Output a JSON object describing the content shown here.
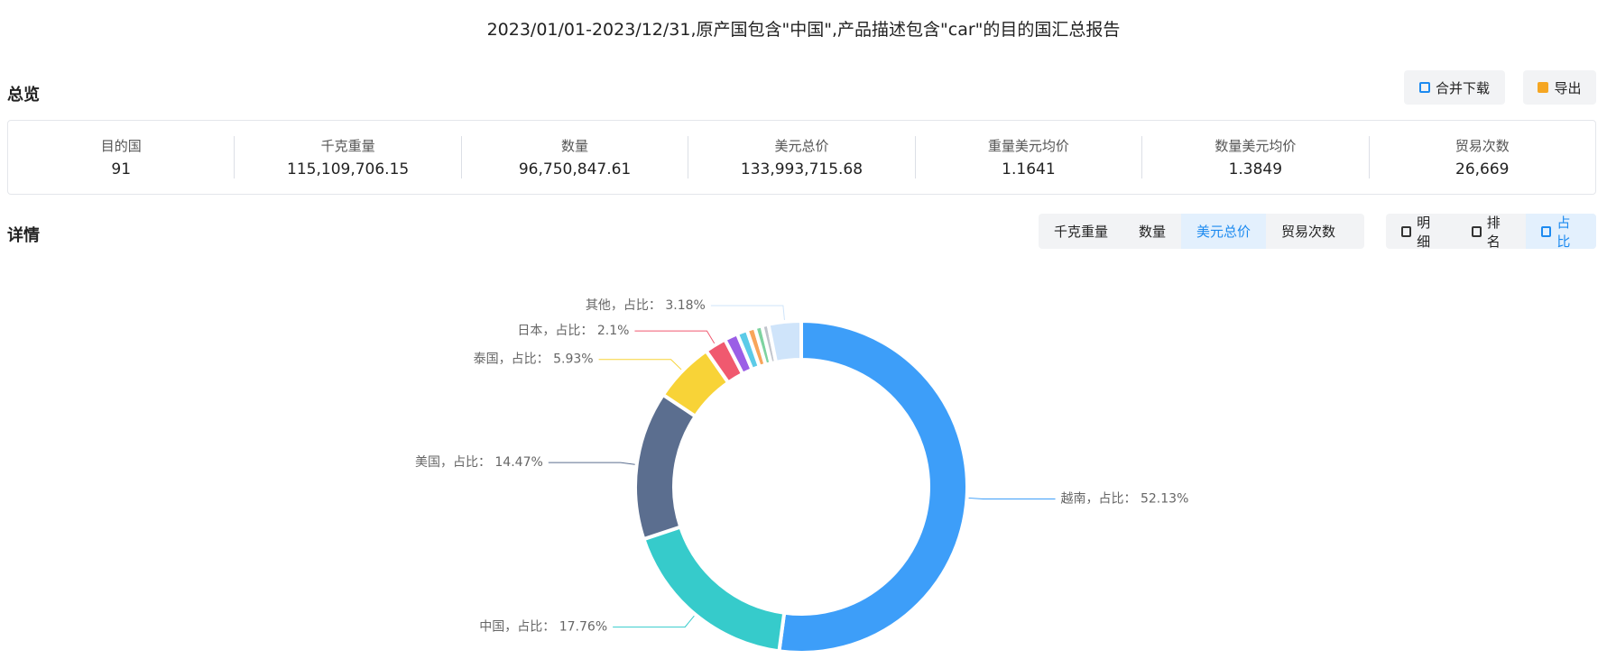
{
  "header": {
    "title": "2023/01/01-2023/12/31,原产国包含\"中国\",产品描述包含\"car\"的目的国汇总报告"
  },
  "overview": {
    "title": "总览",
    "buttons": [
      "合并下载",
      "导出"
    ],
    "stats": [
      {
        "label": "目的国",
        "value": "91"
      },
      {
        "label": "千克重量",
        "value": "115,109,706.15"
      },
      {
        "label": "数量",
        "value": "96,750,847.61"
      },
      {
        "label": "美元总价",
        "value": "133,993,715.68"
      },
      {
        "label": "重量美元均价",
        "value": "1.1641"
      },
      {
        "label": "数量美元均价",
        "value": "1.3849"
      },
      {
        "label": "贸易次数",
        "value": "26,669"
      }
    ]
  },
  "details": {
    "title": "详情",
    "metric_tabs": [
      "千克重量",
      "数量",
      "美元总价",
      "贸易次数"
    ],
    "metric_active": 2,
    "view_tabs": [
      "明细",
      "排名",
      "占比"
    ],
    "view_active": 2
  },
  "chart_data": {
    "type": "donut",
    "values": [
      52.13,
      17.76,
      14.47,
      5.93,
      2.1,
      1.3,
      1.0,
      0.8,
      0.7,
      0.63,
      3.18
    ],
    "value_labels": [
      "越南，占比： 52.13%",
      "中国，占比： 17.76%",
      "美国，占比： 14.47%",
      "泰国，占比： 5.93%",
      "日本，占比： 2.1%",
      null,
      null,
      null,
      null,
      null,
      "其他，占比： 3.18%"
    ],
    "colors": [
      "#3d9ef9",
      "#36cbcb",
      "#5b6e8f",
      "#f8d337",
      "#f0596f",
      "#9b5ee6",
      "#5ccbe8",
      "#f8a55a",
      "#7dd3a0",
      "#c0c4cc",
      "#cfe4fa"
    ]
  }
}
